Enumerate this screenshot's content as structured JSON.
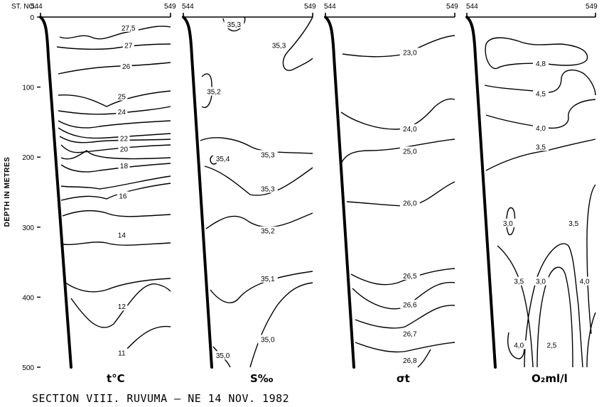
{
  "chart_data": {
    "type": "contour",
    "caption": "SECTION VIII. RUVUMA — NE  14 NOV. 1982",
    "ylabel": "DEPTH IN METRES",
    "station_label": "ST. NO.",
    "y_ticks": [
      "0",
      "100",
      "200",
      "300",
      "400",
      "500"
    ],
    "ylim": [
      0,
      500
    ],
    "panels": [
      {
        "id": "temperature",
        "parameter": "t°C",
        "station_left": "544",
        "station_right": "549",
        "contour_labels": [
          {
            "text": "27,5",
            "depth": 15,
            "pos": 0.62
          },
          {
            "text": "27",
            "depth": 40,
            "pos": 0.62
          },
          {
            "text": "26",
            "depth": 70,
            "pos": 0.6
          },
          {
            "text": "25",
            "depth": 113,
            "pos": 0.56
          },
          {
            "text": "24",
            "depth": 135,
            "pos": 0.56
          },
          {
            "text": "22",
            "depth": 173,
            "pos": 0.58
          },
          {
            "text": "20",
            "depth": 188,
            "pos": 0.58
          },
          {
            "text": "18",
            "depth": 212,
            "pos": 0.58
          },
          {
            "text": "16",
            "depth": 255,
            "pos": 0.57
          },
          {
            "text": "14",
            "depth": 311,
            "pos": 0.56
          },
          {
            "text": "12",
            "depth": 413,
            "pos": 0.56
          },
          {
            "text": "11",
            "depth": 479,
            "pos": 0.56
          }
        ]
      },
      {
        "id": "salinity",
        "parameter": "S‰",
        "station_left": "544",
        "station_right": "549",
        "contour_labels": [
          {
            "text": "35,3",
            "depth": 10,
            "pos": 0.3
          },
          {
            "text": "35,3",
            "depth": 40,
            "pos": 0.7
          },
          {
            "text": "35,2",
            "depth": 106,
            "pos": 0.12
          },
          {
            "text": "35,4",
            "depth": 202,
            "pos": 0.2
          },
          {
            "text": "35,3",
            "depth": 196,
            "pos": 0.6
          },
          {
            "text": "35,3",
            "depth": 245,
            "pos": 0.6
          },
          {
            "text": "35,2",
            "depth": 305,
            "pos": 0.6
          },
          {
            "text": "35,1",
            "depth": 373,
            "pos": 0.6
          },
          {
            "text": "35,0",
            "depth": 460,
            "pos": 0.6
          },
          {
            "text": "35,0",
            "depth": 483,
            "pos": 0.2
          }
        ]
      },
      {
        "id": "sigma_t",
        "parameter": "σt",
        "station_left": "544",
        "station_right": "549",
        "contour_labels": [
          {
            "text": "23,0",
            "depth": 50,
            "pos": 0.6
          },
          {
            "text": "24,0",
            "depth": 159,
            "pos": 0.6
          },
          {
            "text": "25,0",
            "depth": 191,
            "pos": 0.6
          },
          {
            "text": "26,0",
            "depth": 265,
            "pos": 0.6
          },
          {
            "text": "26,5",
            "depth": 369,
            "pos": 0.6
          },
          {
            "text": "26,6",
            "depth": 410,
            "pos": 0.6
          },
          {
            "text": "26,7",
            "depth": 452,
            "pos": 0.6
          },
          {
            "text": "26,8",
            "depth": 490,
            "pos": 0.6
          }
        ]
      },
      {
        "id": "oxygen",
        "parameter": "O₂ml/l",
        "station_left": "544",
        "station_right": "549",
        "contour_labels": [
          {
            "text": "4,8",
            "depth": 66,
            "pos": 0.5
          },
          {
            "text": "4,5",
            "depth": 109,
            "pos": 0.5
          },
          {
            "text": "4,0",
            "depth": 158,
            "pos": 0.5
          },
          {
            "text": "3,5",
            "depth": 185,
            "pos": 0.5
          },
          {
            "text": "3,0",
            "depth": 294,
            "pos": 0.2
          },
          {
            "text": "3,5",
            "depth": 294,
            "pos": 0.8
          },
          {
            "text": "3,5",
            "depth": 377,
            "pos": 0.3
          },
          {
            "text": "3,0",
            "depth": 377,
            "pos": 0.5
          },
          {
            "text": "4,0",
            "depth": 377,
            "pos": 0.9
          },
          {
            "text": "4,0",
            "depth": 468,
            "pos": 0.3
          },
          {
            "text": "2,5",
            "depth": 468,
            "pos": 0.6
          }
        ]
      }
    ]
  }
}
